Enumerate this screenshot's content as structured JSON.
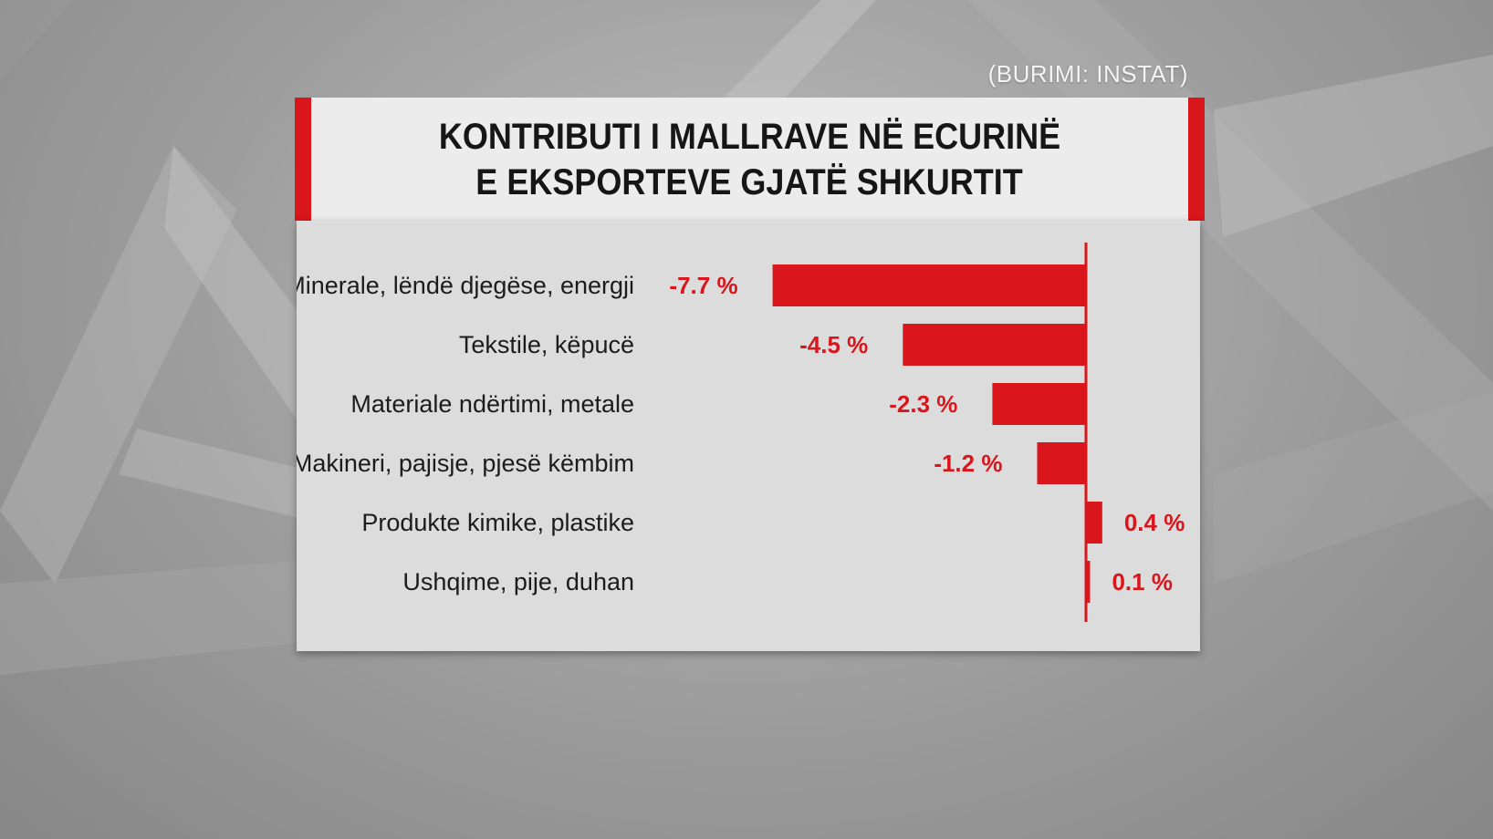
{
  "source": "(BURIMI: INSTAT)",
  "title_lines": [
    "KONTRIBUTI I MALLRAVE NË ECURINË",
    "E EKSPORTEVE GJATË SHKURTIT"
  ],
  "colors": {
    "bar": "#d8161b",
    "accent": "#d8161b",
    "panel": "#dcdcdc",
    "title_bg": "#ececec"
  },
  "chart_data": {
    "type": "bar",
    "orientation": "horizontal",
    "title": "KONTRIBUTI I MALLRAVE NË ECURINË E EKSPORTEVE GJATË SHKURTIT",
    "categories": [
      "Minerale, lëndë djegëse, energji",
      "Tekstile, këpucë",
      "Materiale ndërtimi, metale",
      "Makineri, pajisje, pjesë këmbim",
      "Produkte kimike, plastike",
      "Ushqime, pije, duhan"
    ],
    "values": [
      -7.7,
      -4.5,
      -2.3,
      -1.2,
      0.4,
      0.1
    ],
    "value_labels": [
      "-7.7 %",
      "-4.5 %",
      "-2.3 %",
      "-1.2 %",
      "0.4 %",
      "0.1 %"
    ],
    "unit": "%",
    "grid": false
  }
}
